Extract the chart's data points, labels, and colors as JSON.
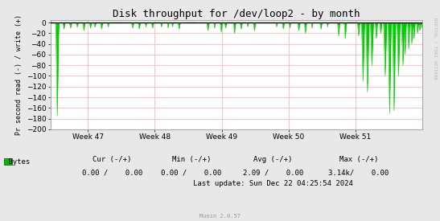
{
  "title": "Disk throughput for /dev/loop2 - by month",
  "ylabel": "Pr second read (-) / write (+)",
  "background_color": "#e8e8e8",
  "plot_bg_color": "#ffffff",
  "grid_color": "#ffaaaa",
  "line_color": "#00cc00",
  "axes_color": "#aaaaaa",
  "top_border_color": "#000000",
  "ylim": [
    -200,
    5
  ],
  "yticks": [
    0,
    -20,
    -40,
    -60,
    -80,
    -100,
    -120,
    -140,
    -160,
    -180,
    -200
  ],
  "xtick_labels": [
    "Week 47",
    "Week 48",
    "Week 49",
    "Week 50",
    "Week 51"
  ],
  "xtick_positions": [
    0.1,
    0.28,
    0.46,
    0.64,
    0.82
  ],
  "footer_update": "Last update: Sun Dec 22 04:25:54 2024",
  "munin_version": "Munin 2.0.57",
  "rrdtool_label": "RRDTOOL / TOBI OETIKER",
  "title_fontsize": 9,
  "tick_fontsize": 6.5,
  "legend_fontsize": 6.5,
  "ylabel_fontsize": 6.0
}
